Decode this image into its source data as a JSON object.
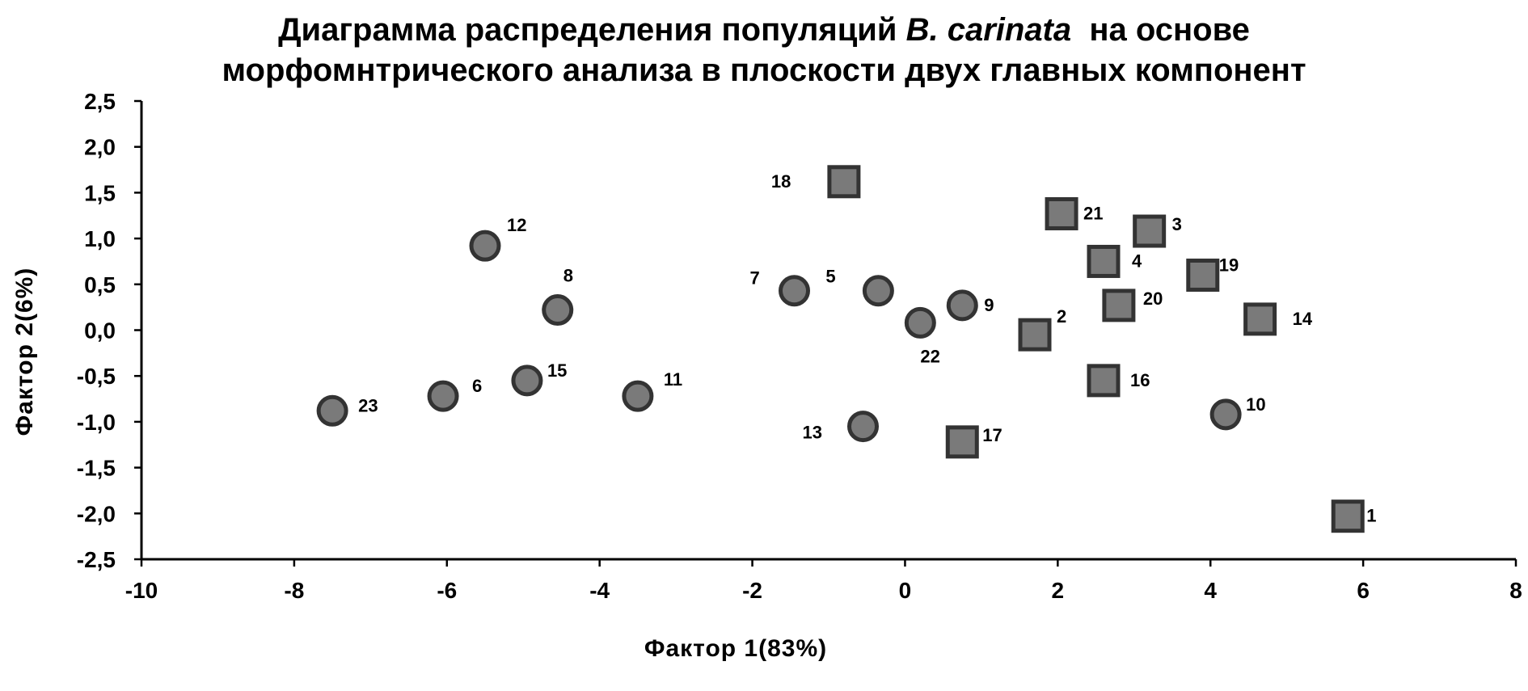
{
  "chart_data": {
    "type": "scatter",
    "title_parts": {
      "line1_prefix": "Диаграмма распределения популяций ",
      "line1_italic": "B. carinata",
      "line1_suffix": "  на основе",
      "line2": "морфомнтрического анализа в плоскости двух главных компонент"
    },
    "xlabel": "Фактор 1(83%)",
    "ylabel": "Фактор 2(6%)",
    "xlim": [
      -10,
      8
    ],
    "ylim": [
      -2.5,
      2.5
    ],
    "x_ticks": [
      "-10",
      "-8",
      "-6",
      "-4",
      "-2",
      "0",
      "2",
      "4",
      "6",
      "8"
    ],
    "y_ticks": [
      "2,5",
      "2,0",
      "1,5",
      "1,0",
      "0,5",
      "0,0",
      "-0,5",
      "-1,0",
      "-1,5",
      "-2,0",
      "-2,5"
    ],
    "grid": false,
    "marker_color": "#7a7a7a",
    "marker_edge_color": "#333333",
    "series": [
      {
        "marker": "circle",
        "points": [
          {
            "label": "23",
            "x": -7.5,
            "y": -0.88
          },
          {
            "label": "6",
            "x": -6.05,
            "y": -0.72
          },
          {
            "label": "15",
            "x": -4.95,
            "y": -0.55
          },
          {
            "label": "12",
            "x": -5.5,
            "y": 0.92
          },
          {
            "label": "8",
            "x": -4.55,
            "y": 0.22
          },
          {
            "label": "11",
            "x": -3.5,
            "y": -0.72
          },
          {
            "label": "7",
            "x": -1.45,
            "y": 0.43
          },
          {
            "label": "5",
            "x": -0.35,
            "y": 0.43
          },
          {
            "label": "22",
            "x": 0.2,
            "y": 0.08
          },
          {
            "label": "9",
            "x": 0.75,
            "y": 0.27
          },
          {
            "label": "13",
            "x": -0.55,
            "y": -1.05
          },
          {
            "label": "10",
            "x": 4.2,
            "y": -0.92
          }
        ]
      },
      {
        "marker": "square",
        "points": [
          {
            "label": "18",
            "x": -0.8,
            "y": 1.62
          },
          {
            "label": "21",
            "x": 2.05,
            "y": 1.27
          },
          {
            "label": "3",
            "x": 3.2,
            "y": 1.08
          },
          {
            "label": "4",
            "x": 2.6,
            "y": 0.75
          },
          {
            "label": "19",
            "x": 3.9,
            "y": 0.6
          },
          {
            "label": "20",
            "x": 2.8,
            "y": 0.27
          },
          {
            "label": "14",
            "x": 4.65,
            "y": 0.12
          },
          {
            "label": "2",
            "x": 1.7,
            "y": -0.05
          },
          {
            "label": "16",
            "x": 2.6,
            "y": -0.55
          },
          {
            "label": "17",
            "x": 0.75,
            "y": -1.22
          },
          {
            "label": "1",
            "x": 5.8,
            "y": -2.03
          }
        ]
      }
    ]
  }
}
